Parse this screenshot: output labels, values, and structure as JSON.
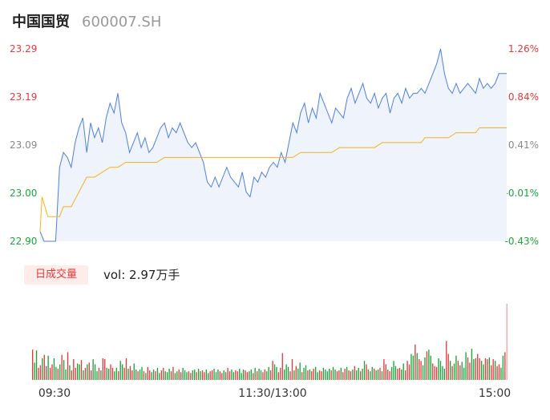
{
  "header": {
    "name": "中国国贸",
    "code": "600007.SH"
  },
  "chart_data": [
    {
      "type": "line",
      "title": "",
      "price_axis": {
        "ticks": [
          "23.29",
          "23.19",
          "23.09",
          "23.00",
          "22.90"
        ],
        "ylim": [
          22.9,
          23.29
        ]
      },
      "pct_axis": {
        "ticks": [
          "1.26%",
          "0.84%",
          "0.41%",
          "-0.01%",
          "-0.43%"
        ]
      },
      "tick_colors": [
        "#e23b3b",
        "#e23b3b",
        "#888888",
        "#1aa33a",
        "#1aa33a"
      ],
      "minutes": 240,
      "series": [
        {
          "role": "price",
          "color": "#4e7fe0",
          "values": [
            [
              0,
              22.92
            ],
            [
              2,
              22.9
            ],
            [
              5,
              22.9
            ],
            [
              8,
              22.9
            ],
            [
              10,
              23.05
            ],
            [
              12,
              23.08
            ],
            [
              14,
              23.07
            ],
            [
              16,
              23.05
            ],
            [
              18,
              23.1
            ],
            [
              20,
              23.13
            ],
            [
              22,
              23.15
            ],
            [
              24,
              23.08
            ],
            [
              26,
              23.14
            ],
            [
              28,
              23.11
            ],
            [
              30,
              23.13
            ],
            [
              32,
              23.1
            ],
            [
              34,
              23.15
            ],
            [
              36,
              23.18
            ],
            [
              38,
              23.16
            ],
            [
              40,
              23.2
            ],
            [
              42,
              23.14
            ],
            [
              44,
              23.12
            ],
            [
              46,
              23.08
            ],
            [
              48,
              23.1
            ],
            [
              50,
              23.12
            ],
            [
              52,
              23.09
            ],
            [
              54,
              23.11
            ],
            [
              56,
              23.08
            ],
            [
              58,
              23.09
            ],
            [
              60,
              23.11
            ],
            [
              62,
              23.13
            ],
            [
              64,
              23.14
            ],
            [
              66,
              23.11
            ],
            [
              68,
              23.13
            ],
            [
              70,
              23.12
            ],
            [
              72,
              23.14
            ],
            [
              74,
              23.12
            ],
            [
              76,
              23.1
            ],
            [
              78,
              23.09
            ],
            [
              80,
              23.1
            ],
            [
              82,
              23.08
            ],
            [
              84,
              23.06
            ],
            [
              86,
              23.02
            ],
            [
              88,
              23.01
            ],
            [
              90,
              23.03
            ],
            [
              92,
              23.01
            ],
            [
              94,
              23.03
            ],
            [
              96,
              23.05
            ],
            [
              98,
              23.03
            ],
            [
              100,
              23.02
            ],
            [
              102,
              23.01
            ],
            [
              104,
              23.04
            ],
            [
              106,
              23.0
            ],
            [
              108,
              22.99
            ],
            [
              110,
              23.03
            ],
            [
              112,
              23.02
            ],
            [
              114,
              23.04
            ],
            [
              116,
              23.03
            ],
            [
              118,
              23.05
            ],
            [
              120,
              23.06
            ],
            [
              122,
              23.05
            ],
            [
              124,
              23.08
            ],
            [
              126,
              23.06
            ],
            [
              128,
              23.1
            ],
            [
              130,
              23.14
            ],
            [
              132,
              23.12
            ],
            [
              134,
              23.16
            ],
            [
              136,
              23.18
            ],
            [
              138,
              23.14
            ],
            [
              140,
              23.17
            ],
            [
              142,
              23.15
            ],
            [
              144,
              23.2
            ],
            [
              146,
              23.18
            ],
            [
              148,
              23.16
            ],
            [
              150,
              23.14
            ],
            [
              152,
              23.17
            ],
            [
              154,
              23.16
            ],
            [
              156,
              23.15
            ],
            [
              158,
              23.19
            ],
            [
              160,
              23.21
            ],
            [
              162,
              23.18
            ],
            [
              164,
              23.2
            ],
            [
              166,
              23.22
            ],
            [
              168,
              23.19
            ],
            [
              170,
              23.18
            ],
            [
              172,
              23.2
            ],
            [
              174,
              23.17
            ],
            [
              176,
              23.19
            ],
            [
              178,
              23.2
            ],
            [
              180,
              23.16
            ],
            [
              182,
              23.19
            ],
            [
              184,
              23.2
            ],
            [
              186,
              23.18
            ],
            [
              188,
              23.21
            ],
            [
              190,
              23.19
            ],
            [
              192,
              23.2
            ],
            [
              194,
              23.2
            ],
            [
              196,
              23.21
            ],
            [
              198,
              23.2
            ],
            [
              200,
              23.22
            ],
            [
              202,
              23.24
            ],
            [
              204,
              23.26
            ],
            [
              206,
              23.29
            ],
            [
              208,
              23.24
            ],
            [
              210,
              23.21
            ],
            [
              212,
              23.2
            ],
            [
              214,
              23.22
            ],
            [
              216,
              23.2
            ],
            [
              218,
              23.21
            ],
            [
              220,
              23.22
            ],
            [
              222,
              23.21
            ],
            [
              224,
              23.2
            ],
            [
              226,
              23.23
            ],
            [
              228,
              23.21
            ],
            [
              230,
              23.22
            ],
            [
              232,
              23.21
            ],
            [
              234,
              23.22
            ],
            [
              236,
              23.24
            ],
            [
              238,
              23.24
            ],
            [
              240,
              23.24
            ]
          ]
        },
        {
          "role": "average",
          "color": "#f5b31c",
          "values": [
            [
              0,
              22.92
            ],
            [
              1,
              22.99
            ],
            [
              4,
              22.95
            ],
            [
              10,
              22.95
            ],
            [
              12,
              22.97
            ],
            [
              16,
              22.97
            ],
            [
              20,
              23.0
            ],
            [
              24,
              23.03
            ],
            [
              28,
              23.03
            ],
            [
              32,
              23.04
            ],
            [
              36,
              23.05
            ],
            [
              40,
              23.05
            ],
            [
              44,
              23.06
            ],
            [
              48,
              23.06
            ],
            [
              50,
              23.06
            ],
            [
              60,
              23.06
            ],
            [
              64,
              23.07
            ],
            [
              80,
              23.07
            ],
            [
              100,
              23.07
            ],
            [
              110,
              23.07
            ],
            [
              130,
              23.07
            ],
            [
              134,
              23.08
            ],
            [
              150,
              23.08
            ],
            [
              154,
              23.09
            ],
            [
              172,
              23.09
            ],
            [
              176,
              23.1
            ],
            [
              190,
              23.1
            ],
            [
              196,
              23.1
            ],
            [
              198,
              23.11
            ],
            [
              210,
              23.11
            ],
            [
              214,
              23.12
            ],
            [
              224,
              23.12
            ],
            [
              226,
              23.13
            ],
            [
              240,
              23.13
            ]
          ]
        }
      ]
    },
    {
      "type": "bar",
      "title": "日成交量",
      "summary": "vol: 2.97万手",
      "time_labels": [
        "09:30",
        "11:30/13:00",
        "15:00"
      ],
      "ylim": [
        0,
        100
      ],
      "up_color": "#e23b3b",
      "down_color": "#1aa33a",
      "directions": "udduuduuduuddududduduuuddududuuddduduudduuddudduuduuddudduduuddudduuddduudduuddduuddudduudduuddduudduudduuddduuddududduudduudduuuddduududdudduduudduuddddudduuduuduududdudduuddudduduuuuddduudduuudduduuddudduuudddduududduuddduudduu",
      "values": [
        35,
        20,
        34,
        14,
        17,
        25,
        29,
        16,
        28,
        14,
        18,
        25,
        15,
        13,
        18,
        29,
        23,
        12,
        32,
        17,
        11,
        24,
        14,
        19,
        18,
        23,
        11,
        14,
        18,
        20,
        11,
        24,
        18,
        10,
        14,
        11,
        25,
        24,
        14,
        13,
        18,
        14,
        10,
        14,
        10,
        22,
        18,
        14,
        25,
        13,
        16,
        11,
        19,
        12,
        10,
        12,
        15,
        10,
        8,
        15,
        11,
        9,
        12,
        10,
        14,
        8,
        11,
        14,
        10,
        9,
        13,
        10,
        15,
        8,
        10,
        12,
        9,
        14,
        11,
        9,
        10,
        8,
        11,
        12,
        9,
        13,
        10,
        11,
        9,
        12,
        8,
        10,
        11,
        13,
        9,
        12,
        10,
        8,
        11,
        9,
        14,
        10,
        12,
        9,
        11,
        10,
        13,
        8,
        12,
        11,
        9,
        10,
        12,
        8,
        14,
        10,
        13,
        11,
        9,
        12,
        10,
        15,
        11,
        22,
        18,
        15,
        9,
        14,
        31,
        12,
        18,
        15,
        10,
        24,
        11,
        16,
        13,
        20,
        9,
        14,
        17,
        11,
        12,
        10,
        13,
        15,
        9,
        11,
        10,
        14,
        12,
        10,
        13,
        11,
        15,
        12,
        10,
        11,
        14,
        9,
        13,
        15,
        11,
        10,
        12,
        16,
        11,
        14,
        10,
        13,
        22,
        18,
        12,
        10,
        15,
        13,
        11,
        12,
        14,
        10,
        24,
        18,
        12,
        10,
        15,
        22,
        16,
        13,
        14,
        12,
        19,
        11,
        22,
        18,
        30,
        28,
        41,
        31,
        24,
        22,
        17,
        26,
        33,
        35,
        28,
        19,
        16,
        15,
        25,
        22,
        16,
        13,
        45,
        30,
        22,
        16,
        19,
        28,
        22,
        17,
        21,
        14,
        32,
        26,
        20,
        36,
        24,
        25,
        30,
        25,
        22,
        18,
        25,
        24,
        26,
        17,
        24,
        22,
        16,
        18,
        14,
        28,
        32,
        88
      ]
    }
  ]
}
